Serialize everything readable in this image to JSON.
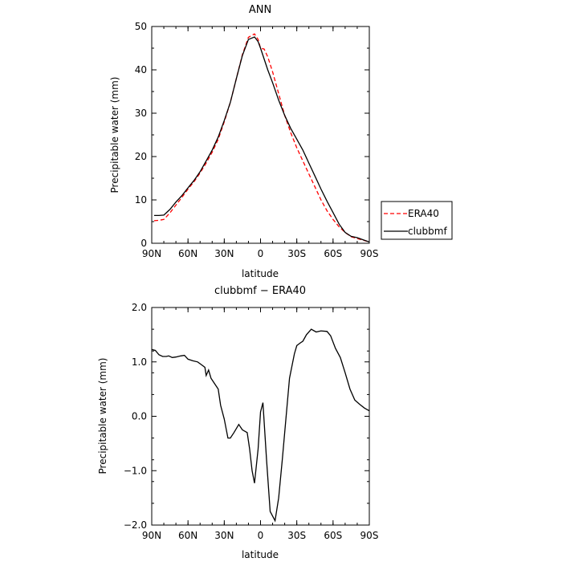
{
  "chart_data": [
    {
      "type": "line",
      "title": "ANN",
      "xlabel": "latitude",
      "ylabel": "Precipitable water (mm)",
      "xlim": [
        90,
        -90
      ],
      "ylim": [
        0,
        50
      ],
      "x_ticks": [
        {
          "value": 90,
          "label": "90N"
        },
        {
          "value": 60,
          "label": "60N"
        },
        {
          "value": 30,
          "label": "30N"
        },
        {
          "value": 0,
          "label": "0"
        },
        {
          "value": -30,
          "label": "30S"
        },
        {
          "value": -60,
          "label": "60S"
        },
        {
          "value": -90,
          "label": "90S"
        }
      ],
      "y_ticks": [
        {
          "value": 0,
          "label": "0"
        },
        {
          "value": 10,
          "label": "10"
        },
        {
          "value": 20,
          "label": "20"
        },
        {
          "value": 30,
          "label": "30"
        },
        {
          "value": 40,
          "label": "40"
        },
        {
          "value": 50,
          "label": "50"
        }
      ],
      "legend_position": "right",
      "series": [
        {
          "name": "ERA40",
          "color": "#ff0000",
          "dash": "dashed",
          "x": [
            88,
            84,
            80,
            75,
            70,
            65,
            60,
            55,
            50,
            45,
            40,
            35,
            30,
            25,
            20,
            15,
            10,
            5,
            2,
            0,
            -3,
            -6,
            -10,
            -15,
            -20,
            -25,
            -30,
            -35,
            -40,
            -45,
            -50,
            -55,
            -60,
            -65,
            -70,
            -75,
            -80,
            -85,
            -90
          ],
          "y": [
            5.2,
            5.3,
            5.5,
            7.0,
            8.8,
            10.6,
            12.5,
            14.2,
            16.2,
            18.5,
            21.0,
            24.0,
            28.0,
            32.5,
            38.0,
            43.5,
            47.5,
            48.3,
            47.0,
            45.0,
            44.8,
            43.0,
            39.5,
            34.5,
            29.5,
            25.5,
            22.0,
            19.0,
            16.0,
            13.0,
            10.0,
            7.5,
            5.5,
            3.8,
            2.5,
            1.5,
            1.1,
            0.7,
            0.3
          ]
        },
        {
          "name": "clubbmf",
          "color": "#000000",
          "dash": "solid",
          "x": [
            88,
            84,
            80,
            75,
            70,
            65,
            60,
            55,
            50,
            45,
            40,
            35,
            30,
            25,
            20,
            15,
            10,
            5,
            2,
            0,
            -3,
            -6,
            -10,
            -15,
            -20,
            -25,
            -30,
            -35,
            -40,
            -45,
            -50,
            -55,
            -60,
            -65,
            -70,
            -75,
            -80,
            -85,
            -90
          ],
          "y": [
            6.4,
            6.4,
            6.5,
            7.8,
            9.5,
            11.0,
            12.8,
            14.5,
            16.5,
            19.0,
            21.5,
            24.5,
            28.3,
            32.5,
            38.0,
            43.3,
            47.0,
            47.6,
            46.5,
            45.0,
            42.5,
            40.0,
            37.0,
            33.0,
            29.5,
            26.5,
            24.0,
            21.5,
            18.5,
            15.5,
            12.5,
            9.7,
            7.1,
            4.4,
            2.5,
            1.6,
            1.3,
            0.8,
            0.3
          ]
        }
      ]
    },
    {
      "type": "line",
      "title": "clubbmf − ERA40",
      "xlabel": "latitude",
      "ylabel": "Precipitable water (mm)",
      "xlim": [
        90,
        -90
      ],
      "ylim": [
        -2.0,
        2.0
      ],
      "x_ticks": [
        {
          "value": 90,
          "label": "90N"
        },
        {
          "value": 60,
          "label": "60N"
        },
        {
          "value": 30,
          "label": "30N"
        },
        {
          "value": 0,
          "label": "0"
        },
        {
          "value": -30,
          "label": "30S"
        },
        {
          "value": -60,
          "label": "60S"
        },
        {
          "value": -90,
          "label": "90S"
        }
      ],
      "y_ticks": [
        {
          "value": -2.0,
          "label": "−2.0"
        },
        {
          "value": -1.0,
          "label": "−1.0"
        },
        {
          "value": 0.0,
          "label": "0.0"
        },
        {
          "value": 1.0,
          "label": "1.0"
        },
        {
          "value": 2.0,
          "label": "2.0"
        }
      ],
      "series": [
        {
          "name": "clubbmf − ERA40",
          "color": "#000000",
          "dash": "solid",
          "x": [
            90,
            87,
            84,
            81,
            78,
            76,
            73,
            70,
            66,
            63,
            60,
            56,
            52,
            49,
            46,
            45,
            43,
            41,
            38,
            35,
            33,
            30,
            27,
            25,
            22,
            18,
            15,
            11,
            9,
            7,
            5,
            2,
            0,
            -2,
            -5,
            -8,
            -12,
            -15,
            -18,
            -20,
            -24,
            -28,
            -30,
            -33,
            -35,
            -38,
            -42,
            -46,
            -50,
            -55,
            -58,
            -62,
            -66,
            -70,
            -74,
            -78,
            -82,
            -86,
            -90
          ],
          "y": [
            1.23,
            1.21,
            1.13,
            1.1,
            1.1,
            1.11,
            1.08,
            1.09,
            1.11,
            1.12,
            1.05,
            1.02,
            1.0,
            0.95,
            0.9,
            0.75,
            0.85,
            0.7,
            0.6,
            0.5,
            0.2,
            -0.05,
            -0.4,
            -0.4,
            -0.3,
            -0.15,
            -0.25,
            -0.3,
            -0.6,
            -1.0,
            -1.23,
            -0.6,
            0.08,
            0.25,
            -0.8,
            -1.75,
            -1.92,
            -1.5,
            -0.8,
            -0.3,
            0.7,
            1.15,
            1.3,
            1.35,
            1.38,
            1.5,
            1.6,
            1.55,
            1.57,
            1.56,
            1.48,
            1.25,
            1.08,
            0.8,
            0.5,
            0.3,
            0.22,
            0.15,
            0.1
          ]
        }
      ]
    }
  ]
}
